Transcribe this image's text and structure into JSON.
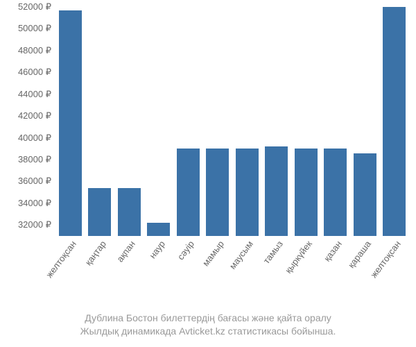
{
  "chart": {
    "type": "bar",
    "bar_color": "#3b72a7",
    "background_color": "#ffffff",
    "text_color": "#666666",
    "caption_color": "#999999",
    "y_axis": {
      "min": 31000,
      "max": 52000,
      "ticks": [
        32000,
        34000,
        36000,
        38000,
        40000,
        42000,
        44000,
        46000,
        48000,
        50000,
        52000
      ],
      "suffix": " ₽",
      "label_fontsize": 13
    },
    "x_axis": {
      "label_fontsize": 13,
      "rotation": -53
    },
    "categories": [
      "желтоқсан",
      "қаңтар",
      "ақпан",
      "наур",
      "сәуір",
      "мамыр",
      "маусым",
      "тамыз",
      "қыркүйек",
      "қазан",
      "қараша",
      "желтоқсан"
    ],
    "values": [
      51700,
      35400,
      35400,
      32200,
      39000,
      39000,
      39000,
      39200,
      39000,
      39000,
      38600,
      52000
    ],
    "bar_width": 0.78
  },
  "caption": {
    "line1": "Дублина Бостон билеттердің бағасы және қайта оралу",
    "line2": "Жылдық динамикада Avticket.kz статистикасы бойынша."
  }
}
